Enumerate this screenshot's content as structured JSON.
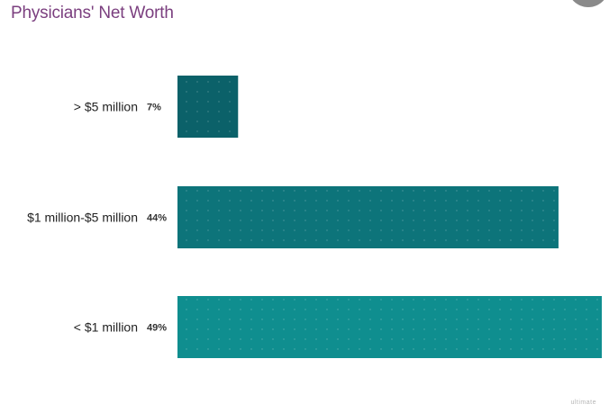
{
  "title": "Physicians' Net Worth",
  "watermark": "ultimate",
  "chart_data": {
    "type": "bar",
    "orientation": "horizontal",
    "title": "Physicians' Net Worth",
    "categories": [
      "> $5 million",
      "$1 million-$5 million",
      "< $1 million"
    ],
    "values": [
      7,
      44,
      49
    ],
    "value_labels": [
      "7%",
      "44%",
      "49%"
    ],
    "xlim": [
      0,
      49
    ],
    "colors": [
      "#0b6169",
      "#0d747a",
      "#0f8e8f"
    ],
    "grid": false,
    "legend": "none"
  }
}
